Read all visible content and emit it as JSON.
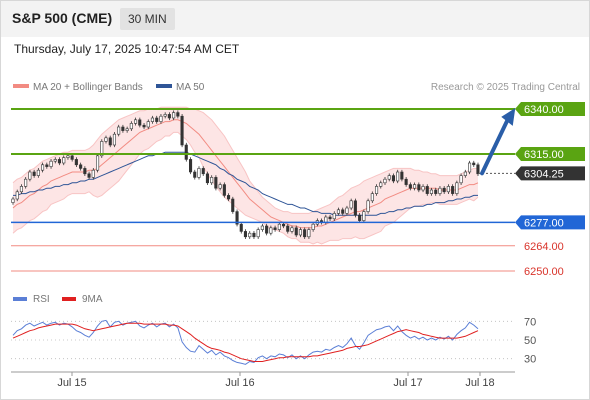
{
  "header": {
    "title": "S&P 500 (CME)",
    "timeframe": "30 MIN",
    "datetime": "Thursday, July 17, 2025 10:47:54 AM CET"
  },
  "legend": {
    "ma20_label": "MA 20 + Bollinger Bands",
    "ma50_label": "MA 50",
    "copyright": "Research © 2025 Trading Central",
    "ma20_color": "#f28b82",
    "ma50_color": "#2f5597"
  },
  "rsi_legend": {
    "rsi_label": "RSI",
    "ma_label": "9MA",
    "rsi_color": "#5b7fd6",
    "ma_color": "#e02020"
  },
  "colors": {
    "resistance": "#5aa412",
    "support": "#2166d6",
    "minor_support": "#f28b82",
    "current": "#333333",
    "arrow": "#2a5ea8"
  },
  "chart_data": [
    {
      "type": "candlestick",
      "title": "S&P 500 (CME) 30 MIN",
      "x_ticks": [
        "Jul 15",
        "Jul 16",
        "Jul 17",
        "Jul 18"
      ],
      "ylim": [
        6245,
        6345
      ],
      "levels": [
        {
          "label": "6340.00",
          "value": 6340,
          "kind": "resistance"
        },
        {
          "label": "6315.00",
          "value": 6315,
          "kind": "resistance"
        },
        {
          "label": "6304.25",
          "value": 6304.25,
          "kind": "current"
        },
        {
          "label": "6277.00",
          "value": 6277,
          "kind": "support"
        },
        {
          "label": "6264.00",
          "value": 6264,
          "kind": "minor_support"
        },
        {
          "label": "6250.00",
          "value": 6250,
          "kind": "minor_support"
        }
      ],
      "close": [
        6290,
        6294,
        6297,
        6301,
        6305,
        6303,
        6306,
        6309,
        6308,
        6311,
        6312,
        6310,
        6313,
        6314,
        6312,
        6309,
        6307,
        6304,
        6302,
        6306,
        6314,
        6322,
        6324,
        6320,
        6326,
        6330,
        6328,
        6329,
        6332,
        6334,
        6331,
        6330,
        6333,
        6335,
        6333,
        6336,
        6337,
        6335,
        6338,
        6336,
        6320,
        6312,
        6305,
        6302,
        6307,
        6304,
        6299,
        6302,
        6296,
        6298,
        6292,
        6290,
        6283,
        6276,
        6272,
        6269,
        6271,
        6269,
        6273,
        6275,
        6271,
        6274,
        6273,
        6276,
        6275,
        6272,
        6274,
        6270,
        6273,
        6269,
        6273,
        6276,
        6278,
        6277,
        6280,
        6279,
        6282,
        6284,
        6282,
        6285,
        6289,
        6281,
        6278,
        6283,
        6289,
        6293,
        6297,
        6299,
        6301,
        6303,
        6300,
        6305,
        6301,
        6298,
        6296,
        6298,
        6295,
        6297,
        6293,
        6295,
        6293,
        6296,
        6294,
        6297,
        6293,
        6299,
        6303,
        6305,
        6310,
        6309,
        6304
      ],
      "ma20": [
        6285,
        6287,
        6288,
        6290,
        6292,
        6293,
        6295,
        6297,
        6298,
        6300,
        6301,
        6302,
        6303,
        6304,
        6305,
        6305,
        6305,
        6305,
        6306,
        6306,
        6307,
        6309,
        6311,
        6313,
        6315,
        6317,
        6319,
        6321,
        6323,
        6325,
        6327,
        6328,
        6329,
        6330,
        6331,
        6332,
        6333,
        6333,
        6334,
        6334,
        6333,
        6332,
        6330,
        6328,
        6326,
        6323,
        6320,
        6317,
        6314,
        6311,
        6308,
        6305,
        6302,
        6299,
        6296,
        6293,
        6290,
        6288,
        6286,
        6284,
        6282,
        6280,
        6279,
        6278,
        6277,
        6276,
        6275,
        6275,
        6274,
        6274,
        6274,
        6274,
        6275,
        6275,
        6276,
        6277,
        6278,
        6279,
        6280,
        6281,
        6282,
        6283,
        6283,
        6284,
        6285,
        6286,
        6287,
        6288,
        6290,
        6291,
        6292,
        6293,
        6294,
        6295,
        6296,
        6296,
        6296,
        6296,
        6296,
        6296,
        6296,
        6295,
        6295,
        6295,
        6295,
        6295,
        6296,
        6297,
        6298,
        6298,
        6299
      ],
      "bb_upper": [
        6299,
        6301,
        6302,
        6304,
        6306,
        6307,
        6309,
        6311,
        6312,
        6313,
        6314,
        6315,
        6316,
        6316,
        6317,
        6317,
        6317,
        6317,
        6318,
        6320,
        6323,
        6326,
        6328,
        6330,
        6332,
        6334,
        6335,
        6336,
        6337,
        6338,
        6339,
        6339,
        6340,
        6340,
        6340,
        6341,
        6341,
        6341,
        6341,
        6341,
        6341,
        6341,
        6340,
        6340,
        6339,
        6338,
        6336,
        6334,
        6331,
        6328,
        6325,
        6321,
        6317,
        6313,
        6309,
        6305,
        6300,
        6297,
        6294,
        6291,
        6289,
        6287,
        6285,
        6284,
        6283,
        6283,
        6282,
        6282,
        6282,
        6282,
        6282,
        6283,
        6284,
        6285,
        6286,
        6287,
        6289,
        6291,
        6292,
        6294,
        6296,
        6297,
        6298,
        6300,
        6301,
        6302,
        6303,
        6304,
        6305,
        6306,
        6307,
        6307,
        6307,
        6307,
        6307,
        6306,
        6306,
        6305,
        6305,
        6304,
        6304,
        6303,
        6303,
        6303,
        6303,
        6303,
        6304,
        6305,
        6306,
        6307,
        6307
      ],
      "bb_lower": [
        6271,
        6273,
        6274,
        6276,
        6278,
        6279,
        6281,
        6283,
        6284,
        6287,
        6288,
        6289,
        6290,
        6292,
        6293,
        6293,
        6293,
        6293,
        6294,
        6292,
        6291,
        6292,
        6294,
        6296,
        6298,
        6300,
        6303,
        6306,
        6309,
        6312,
        6315,
        6317,
        6318,
        6320,
        6322,
        6323,
        6325,
        6325,
        6327,
        6327,
        6325,
        6323,
        6320,
        6316,
        6313,
        6308,
        6304,
        6300,
        6297,
        6294,
        6291,
        6289,
        6287,
        6285,
        6283,
        6281,
        6280,
        6279,
        6278,
        6277,
        6275,
        6273,
        6273,
        6272,
        6271,
        6269,
        6268,
        6268,
        6266,
        6266,
        6266,
        6265,
        6266,
        6265,
        6266,
        6267,
        6267,
        6267,
        6268,
        6268,
        6268,
        6269,
        6268,
        6268,
        6269,
        6270,
        6271,
        6272,
        6275,
        6276,
        6277,
        6279,
        6281,
        6283,
        6285,
        6286,
        6286,
        6287,
        6287,
        6288,
        6288,
        6287,
        6287,
        6287,
        6287,
        6287,
        6288,
        6289,
        6290,
        6289,
        6291
      ],
      "ma50": [
        6292,
        6292,
        6293,
        6293,
        6294,
        6294,
        6295,
        6295,
        6296,
        6296,
        6297,
        6297,
        6298,
        6298,
        6299,
        6299,
        6300,
        6300,
        6301,
        6301,
        6302,
        6303,
        6304,
        6305,
        6306,
        6307,
        6308,
        6309,
        6310,
        6311,
        6312,
        6313,
        6314,
        6314,
        6315,
        6315,
        6316,
        6316,
        6316,
        6316,
        6316,
        6316,
        6315,
        6314,
        6313,
        6312,
        6311,
        6310,
        6309,
        6307,
        6306,
        6304,
        6303,
        6301,
        6300,
        6299,
        6297,
        6296,
        6295,
        6293,
        6292,
        6291,
        6290,
        6289,
        6288,
        6287,
        6287,
        6286,
        6285,
        6285,
        6284,
        6283,
        6283,
        6282,
        6282,
        6282,
        6281,
        6281,
        6281,
        6281,
        6281,
        6281,
        6281,
        6281,
        6281,
        6281,
        6281,
        6282,
        6282,
        6283,
        6283,
        6284,
        6284,
        6285,
        6285,
        6286,
        6286,
        6286,
        6287,
        6287,
        6288,
        6288,
        6288,
        6289,
        6289,
        6290,
        6290,
        6291,
        6291,
        6292,
        6292
      ],
      "projection": {
        "from": 6304.25,
        "to": 6340.0
      }
    },
    {
      "type": "line",
      "title": "RSI",
      "ylim": [
        20,
        80
      ],
      "y_ticks": [
        "70",
        "50",
        "30"
      ],
      "rsi": [
        55,
        60,
        62,
        66,
        68,
        65,
        67,
        69,
        66,
        68,
        69,
        66,
        68,
        67,
        64,
        60,
        58,
        55,
        53,
        58,
        65,
        70,
        71,
        64,
        69,
        70,
        66,
        68,
        69,
        70,
        65,
        63,
        66,
        68,
        64,
        67,
        68,
        64,
        67,
        63,
        48,
        42,
        38,
        37,
        44,
        40,
        36,
        39,
        34,
        37,
        33,
        31,
        28,
        26,
        25,
        24,
        27,
        26,
        31,
        33,
        30,
        33,
        32,
        35,
        34,
        31,
        34,
        30,
        33,
        30,
        34,
        37,
        38,
        37,
        40,
        39,
        42,
        44,
        42,
        46,
        52,
        44,
        40,
        47,
        55,
        58,
        61,
        62,
        64,
        65,
        60,
        65,
        59,
        55,
        52,
        54,
        51,
        53,
        50,
        52,
        50,
        53,
        51,
        54,
        50,
        56,
        60,
        63,
        69,
        66,
        62
      ],
      "ma": [
        52,
        54,
        56,
        58,
        60,
        61,
        63,
        64,
        65,
        66,
        67,
        67,
        67,
        67,
        67,
        66,
        64,
        62,
        61,
        60,
        61,
        62,
        63,
        64,
        65,
        66,
        67,
        68,
        68,
        68,
        68,
        67,
        67,
        67,
        67,
        67,
        67,
        66,
        66,
        65,
        62,
        59,
        56,
        52,
        49,
        46,
        43,
        41,
        40,
        39,
        37,
        36,
        34,
        32,
        30,
        29,
        28,
        27,
        27,
        27,
        28,
        29,
        30,
        31,
        31,
        32,
        32,
        32,
        32,
        32,
        32,
        33,
        33,
        34,
        35,
        36,
        37,
        38,
        39,
        41,
        42,
        43,
        43,
        44,
        45,
        47,
        49,
        51,
        53,
        55,
        57,
        59,
        60,
        61,
        60,
        59,
        58,
        56,
        55,
        54,
        53,
        52,
        52,
        52,
        52,
        52,
        53,
        54,
        56,
        58,
        60
      ]
    }
  ]
}
